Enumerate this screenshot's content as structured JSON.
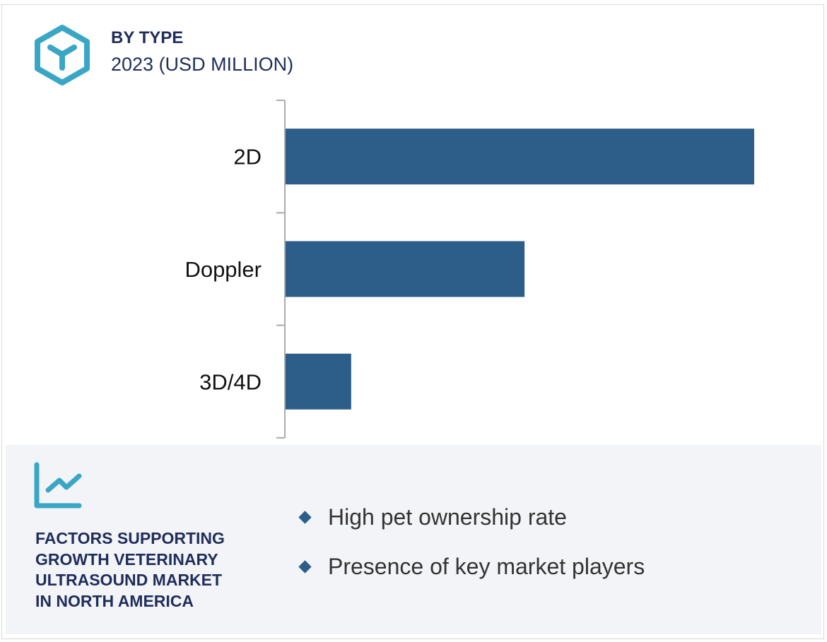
{
  "header": {
    "title": "BY TYPE",
    "subtitle": "2023 (USD MILLION)",
    "icon": "cube-icon"
  },
  "colors": {
    "bar": "#2d5e8a",
    "accent": "#3aa6c6",
    "navy": "#1f2d5a",
    "panel": "#f3f4f8"
  },
  "chart_data": {
    "type": "bar",
    "orientation": "horizontal",
    "title": "BY TYPE",
    "subtitle": "2023 (USD MILLION)",
    "categories": [
      "2D",
      "Doppler",
      "3D/4D"
    ],
    "values": [
      1.0,
      0.51,
      0.14
    ],
    "value_note": "relative bar lengths (no value axis printed)",
    "grid": false
  },
  "factors": {
    "icon": "trend-chart-icon",
    "heading": "FACTORS SUPPORTING\nGROWTH VETERINARY\nULTRASOUND MARKET\nIN NORTH AMERICA",
    "items": [
      "High pet ownership rate",
      "Presence of key market players"
    ]
  }
}
